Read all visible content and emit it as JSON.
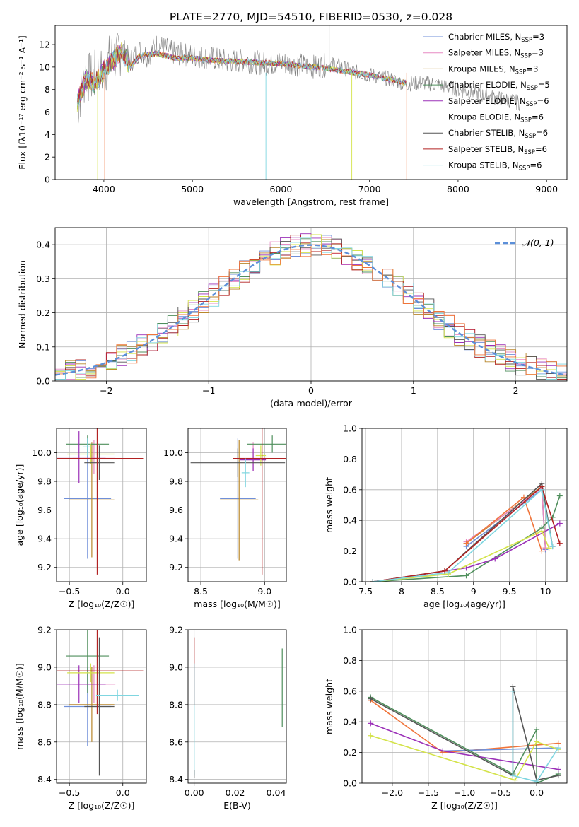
{
  "figure_title": "PLATE=2770, MJD=54510, FIBERID=0530, z=0.028",
  "colors": {
    "Chabrier MILES": "#6f8fd8",
    "Salpeter MILES": "#e78ac3",
    "Kroupa MILES": "#b8862b",
    "Chabrier ELODIE": "#4f8f5c",
    "Salpeter ELODIE": "#9b30b8",
    "Kroupa ELODIE": "#d4e34a",
    "Chabrier STELIB": "#555555",
    "Salpeter STELIB": "#b22222",
    "Kroupa STELIB": "#7fd6e0",
    "orange": "#f0743a",
    "normal": "#5b8fd9"
  },
  "chart_data": [
    {
      "id": "spectrum",
      "type": "line",
      "title": "PLATE=2770, MJD=54510, FIBERID=0530, z=0.028",
      "xlabel": "wavelength [Angstrom, rest frame]",
      "ylabel": "Flux [fλ10⁻¹⁷ erg cm⁻² s⁻¹ A⁻¹]",
      "xlim": [
        3450,
        9230
      ],
      "ylim": [
        0,
        13.7
      ],
      "xticks": [
        4000,
        5000,
        6000,
        7000,
        8000,
        9000
      ],
      "yticks": [
        0,
        2,
        4,
        6,
        8,
        10,
        12
      ],
      "legend_position": "top-right",
      "legend": [
        {
          "name": "Chabrier MILES",
          "nssp": "3"
        },
        {
          "name": "Salpeter MILES",
          "nssp": "3"
        },
        {
          "name": "Kroupa MILES",
          "nssp": "3"
        },
        {
          "name": "Chabrier ELODIE",
          "nssp": "5"
        },
        {
          "name": "Salpeter ELODIE",
          "nssp": "6"
        },
        {
          "name": "Kroupa ELODIE",
          "nssp": "6"
        },
        {
          "name": "Chabrier STELIB",
          "nssp": "6"
        },
        {
          "name": "Salpeter STELIB",
          "nssp": "6"
        },
        {
          "name": "Kroupa STELIB",
          "nssp": "6"
        }
      ],
      "series": [
        {
          "name": "data",
          "x": [
            3700,
            3750,
            3800,
            3850,
            3900,
            3950,
            4000,
            4050,
            4100,
            4150,
            4200,
            4300,
            4400,
            4500,
            4600,
            4800,
            5000,
            5200,
            5400,
            5600,
            5800,
            6000,
            6200,
            6400,
            6600,
            6800,
            7000,
            7200,
            7400,
            7600,
            7800,
            8000,
            8200,
            8400,
            8600,
            8700
          ],
          "y": [
            6.5,
            8.0,
            9.5,
            8.8,
            9.2,
            10.0,
            9.0,
            10.5,
            11.0,
            10.8,
            11.8,
            10.5,
            11.5,
            11.0,
            12.0,
            11.2,
            11.0,
            10.8,
            10.5,
            10.6,
            10.3,
            10.4,
            10.2,
            10.0,
            10.3,
            9.6,
            9.3,
            9.0,
            8.5,
            8.6,
            8.4,
            8.0,
            7.6,
            7.3,
            7.0,
            6.8
          ]
        },
        {
          "name": "model",
          "x": [
            3700,
            3800,
            3900,
            4000,
            4100,
            4200,
            4300,
            4400,
            4600,
            4800,
            5000,
            5200,
            5500,
            6000,
            6500,
            7000,
            7400
          ],
          "y": [
            6.8,
            9.0,
            8.5,
            9.8,
            10.5,
            11.5,
            10.0,
            11.0,
            11.2,
            10.8,
            10.8,
            10.6,
            10.5,
            10.3,
            9.9,
            9.3,
            8.6
          ]
        }
      ]
    },
    {
      "id": "residuals",
      "type": "line",
      "xlabel": "(data-model)/error",
      "ylabel": "Normed distribution",
      "xlim": [
        -2.5,
        2.5
      ],
      "ylim": [
        0,
        0.45
      ],
      "xticks": [
        -2,
        -1,
        0,
        1,
        2
      ],
      "xticklabels": [
        "−2",
        "−1",
        "0",
        "1",
        "2"
      ],
      "yticks": [
        0.0,
        0.1,
        0.2,
        0.3,
        0.4
      ],
      "legend": [
        {
          "name": "𝒩(0, 1)"
        }
      ],
      "legend_position": "top-right",
      "bins": 50
    },
    {
      "id": "age_vs_Z",
      "type": "scatter",
      "xlabel": "Z [log₁₀(Z/Z☉)]",
      "ylabel": "age  [log₁₀(age/yr)]",
      "xlim": [
        -0.62,
        0.22
      ],
      "ylim": [
        9.1,
        10.17
      ],
      "xticks": [
        -0.5,
        0.0
      ],
      "xticklabels": [
        "−0.5",
        "0.0"
      ],
      "yticks": [
        9.2,
        9.4,
        9.6,
        9.8,
        10.0
      ],
      "points": [
        {
          "model": "Chabrier MILES",
          "x": -0.33,
          "xerr": 0.22,
          "y": 9.68,
          "yerr": 0.42
        },
        {
          "model": "Salpeter MILES",
          "x": -0.27,
          "xerr": 0.2,
          "y": 9.97,
          "yerr": 0.12
        },
        {
          "model": "Kroupa MILES",
          "x": -0.29,
          "xerr": 0.21,
          "y": 9.67,
          "yerr": 0.4
        },
        {
          "model": "Chabrier ELODIE",
          "x": -0.33,
          "xerr": 0.2,
          "y": 10.06,
          "yerr": 0.06
        },
        {
          "model": "Salpeter ELODIE",
          "x": -0.41,
          "xerr": 0.25,
          "y": 9.97,
          "yerr": 0.18
        },
        {
          "model": "Kroupa ELODIE",
          "x": -0.3,
          "xerr": 0.22,
          "y": 9.99,
          "yerr": 0.07
        },
        {
          "model": "Chabrier STELIB",
          "x": -0.22,
          "xerr": 0.14,
          "y": 9.93,
          "yerr": 0.12
        },
        {
          "model": "Salpeter STELIB",
          "x": -0.24,
          "xerr": 0.43,
          "y": 9.96,
          "yerr": 0.81
        },
        {
          "model": "Kroupa STELIB",
          "x": -0.33,
          "xerr": 0.04,
          "y": 10.04,
          "yerr": 0.06
        }
      ]
    },
    {
      "id": "age_vs_mass",
      "type": "scatter",
      "xlabel": "mass [log₁₀(M/M☉)]",
      "xlim": [
        8.4,
        9.17
      ],
      "ylim": [
        9.1,
        10.17
      ],
      "xticks": [
        8.5,
        9.0
      ],
      "xticklabels": [
        "8.5",
        "9.0"
      ],
      "yticks": [
        9.2,
        9.4,
        9.6,
        9.8,
        10.0
      ],
      "points": [
        {
          "model": "Chabrier MILES",
          "x": 8.79,
          "xerr": 0.14,
          "y": 9.68,
          "yerr": 0.42
        },
        {
          "model": "Salpeter MILES",
          "x": 8.91,
          "xerr": 0.1,
          "y": 9.97,
          "yerr": 0.1
        },
        {
          "model": "Kroupa MILES",
          "x": 8.8,
          "xerr": 0.15,
          "y": 9.67,
          "yerr": 0.42
        },
        {
          "model": "Chabrier ELODIE",
          "x": 9.06,
          "xerr": 0.2,
          "y": 10.06,
          "yerr": 0.06
        },
        {
          "model": "Salpeter ELODIE",
          "x": 8.91,
          "xerr": 0.1,
          "y": 9.95,
          "yerr": 0.08
        },
        {
          "model": "Kroupa ELODIE",
          "x": 8.97,
          "xerr": 0.04,
          "y": 9.98,
          "yerr": 0.07
        },
        {
          "model": "Chabrier STELIB",
          "x": 8.79,
          "xerr": 0.37,
          "y": 9.93,
          "yerr": 0.1
        },
        {
          "model": "Salpeter STELIB",
          "x": 8.98,
          "xerr": 0.23,
          "y": 9.96,
          "yerr": 0.81
        },
        {
          "model": "Kroupa STELIB",
          "x": 8.85,
          "xerr": 0.03,
          "y": 9.86,
          "yerr": 0.1
        }
      ]
    },
    {
      "id": "weight_vs_age",
      "type": "line",
      "xlabel": "age  [log₁₀(age/yr)]",
      "ylabel": "mass weight",
      "xlim": [
        7.45,
        10.3
      ],
      "ylim": [
        0,
        1.0
      ],
      "xticks": [
        7.5,
        8.0,
        8.5,
        9.0,
        9.5,
        10.0
      ],
      "yticks": [
        0.0,
        0.2,
        0.4,
        0.6,
        0.8,
        1.0
      ],
      "series": [
        {
          "name": "Chabrier MILES",
          "x": [
            8.9,
            9.95,
            10.0
          ],
          "y": [
            0.23,
            0.6,
            0.21
          ]
        },
        {
          "name": "Kroupa MILES",
          "x": [
            8.9,
            9.95,
            10.0
          ],
          "y": [
            0.25,
            0.62,
            0.22
          ]
        },
        {
          "name": "Salpeter MILES",
          "x": [
            8.9,
            9.95,
            10.0
          ],
          "y": [
            0.26,
            0.61,
            0.22
          ]
        },
        {
          "name": "orange",
          "x": [
            8.9,
            9.7,
            9.95
          ],
          "y": [
            0.25,
            0.55,
            0.2
          ]
        },
        {
          "name": "Chabrier ELODIE",
          "x": [
            7.6,
            8.9,
            9.95,
            10.1,
            10.2
          ],
          "y": [
            0.0,
            0.04,
            0.35,
            0.42,
            0.56
          ]
        },
        {
          "name": "Salpeter ELODIE",
          "x": [
            7.6,
            8.9,
            9.3,
            10.2
          ],
          "y": [
            0.0,
            0.09,
            0.15,
            0.38
          ]
        },
        {
          "name": "Kroupa ELODIE",
          "x": [
            7.6,
            8.65,
            9.95,
            10.05
          ],
          "y": [
            0.0,
            0.05,
            0.33,
            0.22
          ]
        },
        {
          "name": "Chabrier STELIB",
          "x": [
            7.6,
            8.6,
            9.95,
            10.1
          ],
          "y": [
            0.0,
            0.07,
            0.64,
            0.23
          ]
        },
        {
          "name": "Salpeter STELIB",
          "x": [
            7.6,
            8.6,
            9.95,
            10.2
          ],
          "y": [
            0.0,
            0.07,
            0.62,
            0.25
          ]
        },
        {
          "name": "Kroupa STELIB",
          "x": [
            7.6,
            8.3,
            8.65,
            9.95,
            10.1
          ],
          "y": [
            0.0,
            0.04,
            0.06,
            0.6,
            0.23
          ]
        }
      ]
    },
    {
      "id": "mass_vs_Z",
      "type": "scatter",
      "xlabel": "Z [log₁₀(Z/Z☉)]",
      "ylabel": "mass [log₁₀(M/M☉)]",
      "xlim": [
        -0.62,
        0.22
      ],
      "ylim": [
        8.38,
        9.2
      ],
      "xticks": [
        -0.5,
        0.0
      ],
      "xticklabels": [
        "−0.5",
        "0.0"
      ],
      "yticks": [
        8.4,
        8.6,
        8.8,
        9.0,
        9.2
      ],
      "points": [
        {
          "model": "Chabrier MILES",
          "x": -0.33,
          "xerr": 0.22,
          "y": 8.79,
          "yerr": 0.21
        },
        {
          "model": "Salpeter MILES",
          "x": -0.27,
          "xerr": 0.2,
          "y": 8.91,
          "yerr": 0.1
        },
        {
          "model": "Kroupa MILES",
          "x": -0.29,
          "xerr": 0.21,
          "y": 8.8,
          "yerr": 0.2
        },
        {
          "model": "Chabrier ELODIE",
          "x": -0.33,
          "xerr": 0.2,
          "y": 9.06,
          "yerr": 0.2
        },
        {
          "model": "Salpeter ELODIE",
          "x": -0.41,
          "xerr": 0.25,
          "y": 8.91,
          "yerr": 0.1
        },
        {
          "model": "Kroupa ELODIE",
          "x": -0.3,
          "xerr": 0.22,
          "y": 8.97,
          "yerr": 0.05
        },
        {
          "model": "Chabrier STELIB",
          "x": -0.22,
          "xerr": 0.14,
          "y": 8.79,
          "yerr": 0.37
        },
        {
          "model": "Salpeter STELIB",
          "x": -0.24,
          "xerr": 0.43,
          "y": 8.98,
          "yerr": 0.23
        },
        {
          "model": "Kroupa STELIB",
          "x": -0.05,
          "xerr": 0.2,
          "y": 8.85,
          "yerr": 0.03
        }
      ]
    },
    {
      "id": "mass_vs_ebv",
      "type": "scatter",
      "xlabel": "E(B-V)",
      "xlim": [
        -0.003,
        0.045
      ],
      "ylim": [
        8.38,
        9.2
      ],
      "xticks": [
        0.0,
        0.02,
        0.04
      ],
      "xticklabels": [
        "0.00",
        "0.02",
        "0.04"
      ],
      "yticks": [
        8.4,
        8.6,
        8.8,
        9.0,
        9.2
      ],
      "points": [
        {
          "model": "Salpeter STELIB",
          "x": 0.0,
          "y": 8.98,
          "yerr": 0.18
        },
        {
          "model": "Kroupa STELIB",
          "x": 0.0,
          "y": 8.72,
          "yerr": 0.3
        },
        {
          "model": "Chabrier STELIB",
          "x": 0.0,
          "y": 8.43,
          "yerr": 0.02
        },
        {
          "model": "Chabrier ELODIE",
          "x": 0.043,
          "y": 8.89,
          "yerr": 0.21
        }
      ]
    },
    {
      "id": "weight_vs_Z",
      "type": "line",
      "xlabel": "Z [log₁₀(Z/Z☉)]",
      "ylabel": "mass weight",
      "xlim": [
        -2.42,
        0.42
      ],
      "ylim": [
        0,
        1.0
      ],
      "xticks": [
        -2.0,
        -1.5,
        -1.0,
        -0.5,
        0.0
      ],
      "xticklabels": [
        "−2.0",
        "−1.5",
        "−1.0",
        "−0.5",
        "0.0"
      ],
      "yticks": [
        0.0,
        0.2,
        0.4,
        0.6,
        0.8,
        1.0
      ],
      "series": [
        {
          "name": "orange",
          "x": [
            -2.3,
            -1.3,
            0.3
          ],
          "y": [
            0.54,
            0.2,
            0.26
          ]
        },
        {
          "name": "Chabrier MILES",
          "x": [
            -1.3,
            0.3
          ],
          "y": [
            0.21,
            0.23
          ]
        },
        {
          "name": "Chabrier ELODIE",
          "x": [
            -2.3,
            -0.33,
            0.0,
            0.0,
            0.3
          ],
          "y": [
            0.56,
            0.06,
            0.35,
            0.0,
            0.06
          ]
        },
        {
          "name": "Salpeter ELODIE",
          "x": [
            -2.3,
            -1.3,
            0.3
          ],
          "y": [
            0.39,
            0.21,
            0.09
          ]
        },
        {
          "name": "Kroupa ELODIE",
          "x": [
            -2.3,
            -0.3,
            0.0,
            0.3
          ],
          "y": [
            0.31,
            0.02,
            0.27,
            0.22
          ]
        },
        {
          "name": "Chabrier STELIB",
          "x": [
            -2.3,
            -0.33,
            -0.33,
            0.0,
            0.3
          ],
          "y": [
            0.55,
            0.05,
            0.63,
            0.02,
            0.05
          ]
        },
        {
          "name": "Kroupa STELIB",
          "x": [
            -0.33,
            -0.33,
            0.0,
            0.3
          ],
          "y": [
            0.6,
            0.05,
            0.01,
            0.23
          ]
        }
      ]
    }
  ]
}
